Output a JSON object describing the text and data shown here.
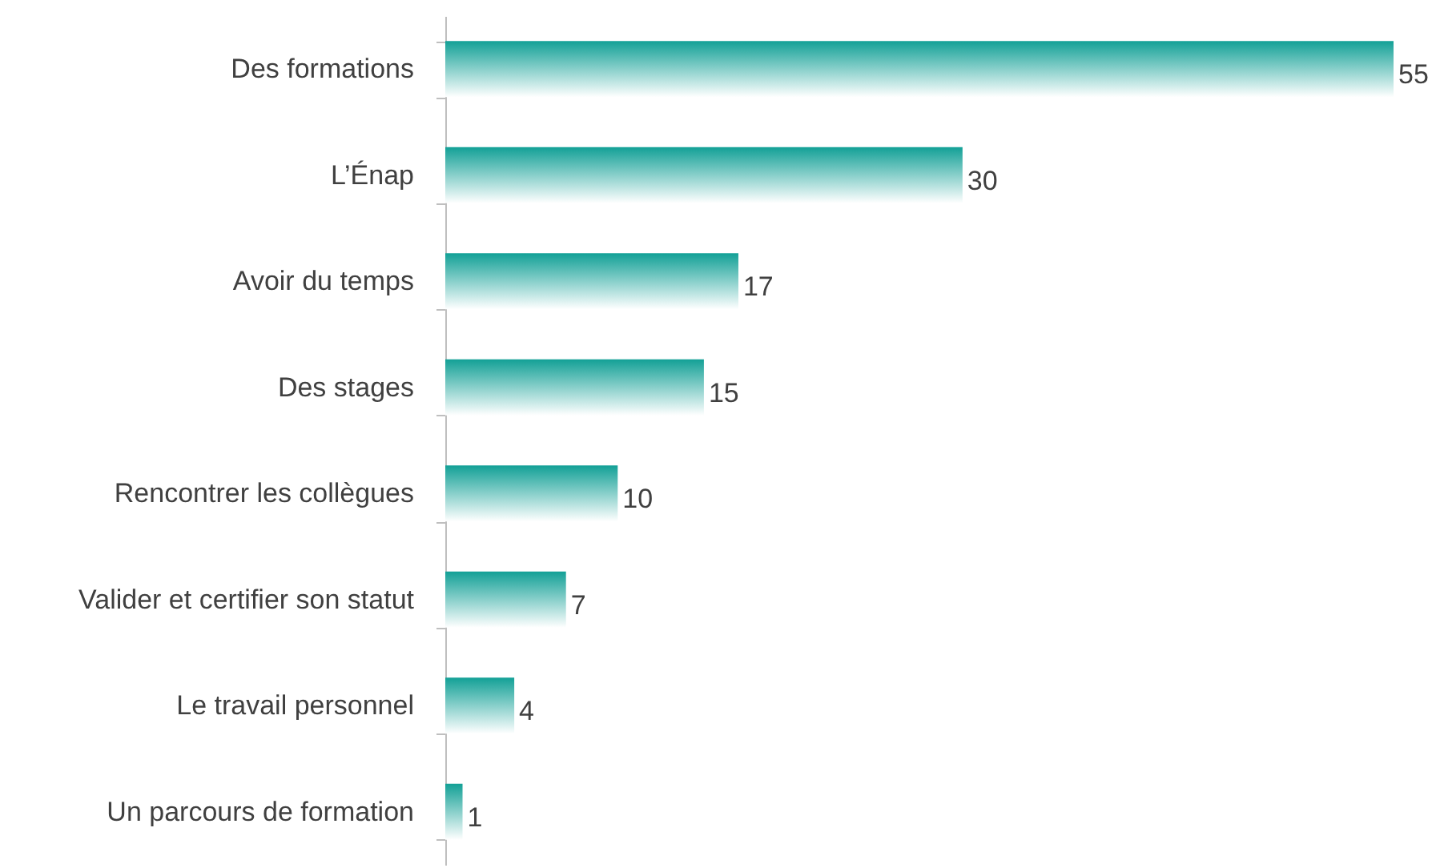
{
  "chart_data": {
    "type": "bar",
    "orientation": "horizontal",
    "categories": [
      "Des formations",
      "L’Énap",
      "Avoir du temps",
      "Des stages",
      "Rencontrer les collègues",
      "Valider et certifier son statut",
      "Le travail personnel",
      "Un parcours de formation"
    ],
    "values": [
      55,
      30,
      17,
      15,
      10,
      7,
      4,
      1
    ],
    "color": "#12a096",
    "data_labels": true
  }
}
